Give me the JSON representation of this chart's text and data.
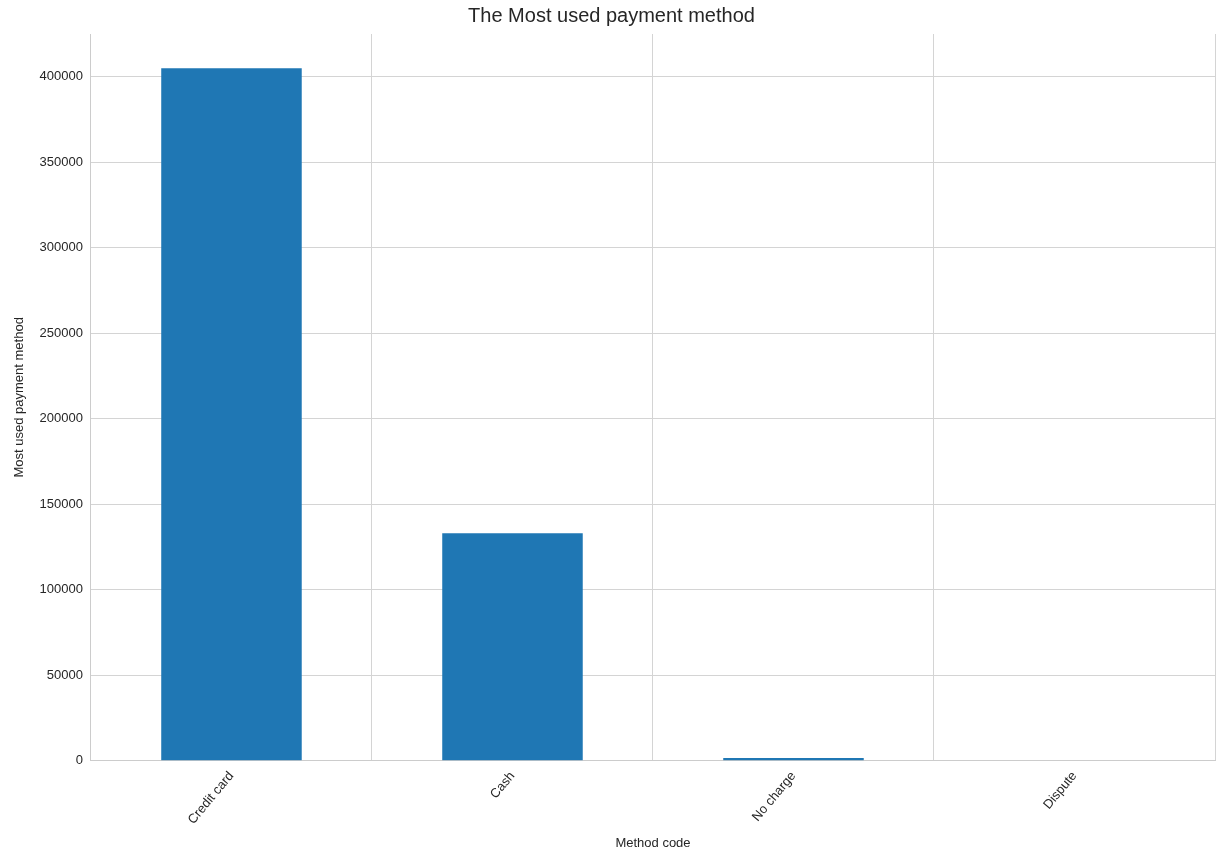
{
  "chart_data": {
    "type": "bar",
    "title": "The Most used payment method",
    "xlabel": "Method code",
    "ylabel": "Most used payment method",
    "categories": [
      "Credit card",
      "Cash",
      "No charge",
      "Dispute"
    ],
    "values": [
      405000,
      133000,
      1500,
      null
    ],
    "color": "#1f77b4",
    "ylim": [
      0,
      425000
    ],
    "yticks": [
      0,
      50000,
      100000,
      150000,
      200000,
      250000,
      300000,
      350000,
      400000
    ],
    "grid": true,
    "legend": false
  }
}
